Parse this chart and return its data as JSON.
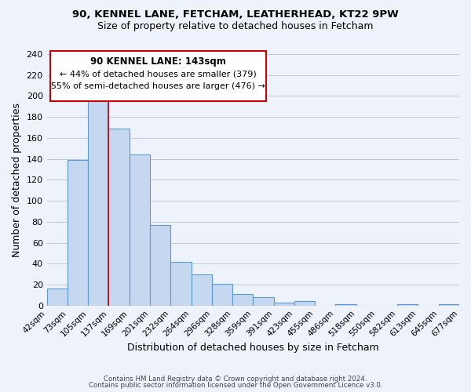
{
  "title1": "90, KENNEL LANE, FETCHAM, LEATHERHEAD, KT22 9PW",
  "title2": "Size of property relative to detached houses in Fetcham",
  "xlabel": "Distribution of detached houses by size in Fetcham",
  "ylabel": "Number of detached properties",
  "bin_labels": [
    "42sqm",
    "73sqm",
    "105sqm",
    "137sqm",
    "169sqm",
    "201sqm",
    "232sqm",
    "264sqm",
    "296sqm",
    "328sqm",
    "359sqm",
    "391sqm",
    "423sqm",
    "455sqm",
    "486sqm",
    "518sqm",
    "550sqm",
    "582sqm",
    "613sqm",
    "645sqm",
    "677sqm"
  ],
  "bar_heights": [
    16,
    139,
    198,
    169,
    144,
    77,
    42,
    30,
    21,
    11,
    8,
    3,
    4,
    0,
    1,
    0,
    0,
    1,
    0,
    1
  ],
  "bar_color": "#c5d8f0",
  "bar_edge_color": "#5b9bd5",
  "vline_x_index": 3,
  "vline_color": "#cc0000",
  "annotation_title": "90 KENNEL LANE: 143sqm",
  "annotation_line1": "← 44% of detached houses are smaller (379)",
  "annotation_line2": "55% of semi-detached houses are larger (476) →",
  "annotation_box_color": "#ffffff",
  "annotation_box_edge": "#cc0000",
  "ylim": [
    0,
    240
  ],
  "yticks": [
    0,
    20,
    40,
    60,
    80,
    100,
    120,
    140,
    160,
    180,
    200,
    220,
    240
  ],
  "footer1": "Contains HM Land Registry data © Crown copyright and database right 2024.",
  "footer2": "Contains public sector information licensed under the Open Government Licence v3.0.",
  "bg_color": "#eef2fb",
  "grid_color": "#c0c8d8"
}
